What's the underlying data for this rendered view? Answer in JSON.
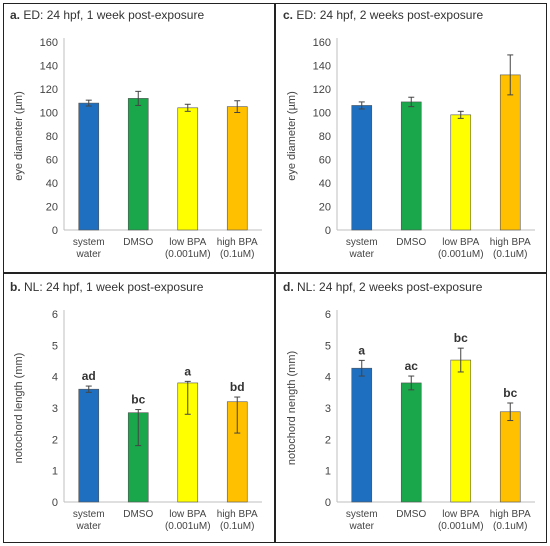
{
  "chart_data": [
    {
      "panel_letter": "a.",
      "title": "ED: 24 hpf, 1 week post-exposure",
      "type": "bar",
      "ylabel": "eye diameter (µm)",
      "ylim": [
        0,
        160
      ],
      "yticks": [
        "0",
        "20",
        "40",
        "60",
        "80",
        "100",
        "120",
        "140",
        "160"
      ],
      "grid": false,
      "categories": [
        {
          "line1": "system",
          "line2": "water"
        },
        {
          "line1": "DMSO",
          "line2": ""
        },
        {
          "line1": "low BPA",
          "line2": "(0.001uM)"
        },
        {
          "line1": "high BPA",
          "line2": "(0.1uM)"
        }
      ],
      "values": [
        108,
        112,
        104,
        105
      ],
      "errors": [
        2.5,
        6,
        3,
        5
      ],
      "sig_labels": [
        "",
        "",
        "",
        ""
      ],
      "colors": [
        "#1f6fc0",
        "#1aa64a",
        "#ffff00",
        "#ffc000"
      ]
    },
    {
      "panel_letter": "c.",
      "title": "ED: 24 hpf, 2 weeks post-exposure",
      "type": "bar",
      "ylabel": "eye diameter (µm)",
      "ylim": [
        0,
        160
      ],
      "yticks": [
        "0",
        "20",
        "40",
        "60",
        "80",
        "100",
        "120",
        "140",
        "160"
      ],
      "grid": false,
      "categories": [
        {
          "line1": "system",
          "line2": "water"
        },
        {
          "line1": "DMSO",
          "line2": ""
        },
        {
          "line1": "low BPA",
          "line2": "(0.001uM)"
        },
        {
          "line1": "high BPA",
          "line2": "(0.1uM)"
        }
      ],
      "values": [
        106,
        109,
        98,
        132
      ],
      "errors": [
        3,
        4,
        3,
        17
      ],
      "sig_labels": [
        "",
        "",
        "",
        ""
      ],
      "colors": [
        "#1f6fc0",
        "#1aa64a",
        "#ffff00",
        "#ffc000"
      ]
    },
    {
      "panel_letter": "b.",
      "title": "NL: 24 hpf, 1 week post-exposure",
      "type": "bar",
      "ylabel": "notochord length  (mm)",
      "ylim": [
        0,
        6
      ],
      "yticks": [
        "0",
        "1",
        "2",
        "3",
        "4",
        "5",
        "6"
      ],
      "grid": false,
      "categories": [
        {
          "line1": "system",
          "line2": "water"
        },
        {
          "line1": "DMSO",
          "line2": ""
        },
        {
          "line1": "low BPA",
          "line2": "(0.001uM)"
        },
        {
          "line1": "high BPA",
          "line2": "(0.1uM)"
        }
      ],
      "values": [
        3.6,
        2.85,
        3.8,
        3.2
      ],
      "errors": [
        0.1,
        1.05,
        1.0,
        1.0
      ],
      "error_hi": [
        0.1,
        0.1,
        0.05,
        0.15
      ],
      "sig_labels": [
        "ad",
        "bc",
        "a",
        "bd"
      ],
      "colors": [
        "#1f6fc0",
        "#1aa64a",
        "#ffff00",
        "#ffc000"
      ]
    },
    {
      "panel_letter": "d.",
      "title": "NL: 24 hpf, 2 weeks post-exposure",
      "type": "bar",
      "ylabel": "notochord nength  (mm)",
      "ylim": [
        0,
        6
      ],
      "yticks": [
        "0",
        "1",
        "2",
        "3",
        "4",
        "5",
        "6"
      ],
      "grid": false,
      "categories": [
        {
          "line1": "system",
          "line2": "water"
        },
        {
          "line1": "DMSO",
          "line2": ""
        },
        {
          "line1": "low BPA",
          "line2": "(0.001uM)"
        },
        {
          "line1": "high BPA",
          "line2": "(0.1uM)"
        }
      ],
      "values": [
        4.27,
        3.8,
        4.53,
        2.88
      ],
      "errors": [
        0.25,
        0.22,
        0.38,
        0.28
      ],
      "sig_labels": [
        "a",
        "ac",
        "bc",
        "bc"
      ],
      "colors": [
        "#1f6fc0",
        "#1aa64a",
        "#ffff00",
        "#ffc000"
      ]
    }
  ]
}
